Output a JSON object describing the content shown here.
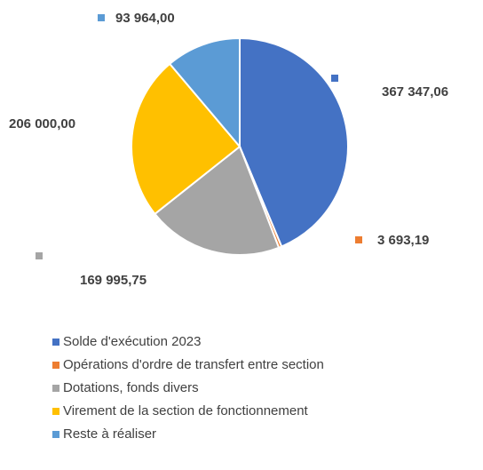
{
  "chart_data": {
    "type": "pie",
    "categories": [
      "Solde d'exécution 2023",
      "Opérations d'ordre de transfert entre section",
      "Dotations, fonds divers",
      "Virement de la section de fonctionnement",
      "Reste à réaliser"
    ],
    "values": [
      367347.06,
      3693.19,
      169995.75,
      206000.0,
      93964.0
    ],
    "value_labels": [
      "367 347,06",
      "3 693,19",
      "169 995,75",
      "206 000,00",
      "93 964,00"
    ],
    "colors": [
      "#4472c4",
      "#ed7d31",
      "#a5a5a5",
      "#ffc000",
      "#5b9bd5"
    ]
  }
}
